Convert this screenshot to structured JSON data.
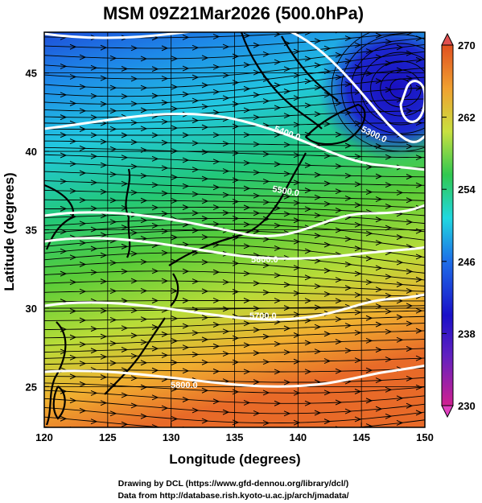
{
  "title": "MSM 09Z21Mar2026 (500.0hPa)",
  "x_axis": {
    "label": "Longitude (degrees)",
    "ticks": [
      "120",
      "125",
      "130",
      "135",
      "140",
      "145",
      "150"
    ],
    "range": [
      120,
      150
    ]
  },
  "y_axis": {
    "label": "Latitude  (degrees)",
    "ticks": [
      "25",
      "30",
      "35",
      "40",
      "45"
    ],
    "range": [
      22.4,
      47.6
    ]
  },
  "colorbar": {
    "ticks": [
      "270",
      "262",
      "254",
      "246",
      "238",
      "230"
    ],
    "range": [
      230,
      270
    ],
    "colors": [
      "#d02090",
      "#1a10c8",
      "#1e6ee8",
      "#20d8e0",
      "#30c850",
      "#c8e040",
      "#f0a030",
      "#e05020"
    ]
  },
  "contours": [
    {
      "label": "5400.0",
      "label2": "5300.0"
    },
    {
      "label": "5500.0"
    },
    {
      "label": "5600.0"
    },
    {
      "label": "5700.0"
    },
    {
      "label": "5800.0"
    }
  ],
  "credits": [
    "Drawing by DCL (https://www.gfd-dennou.org/library/dcl/)",
    "Data from http://database.rish.kyoto-u.ac.jp/arch/jmadata/"
  ]
}
